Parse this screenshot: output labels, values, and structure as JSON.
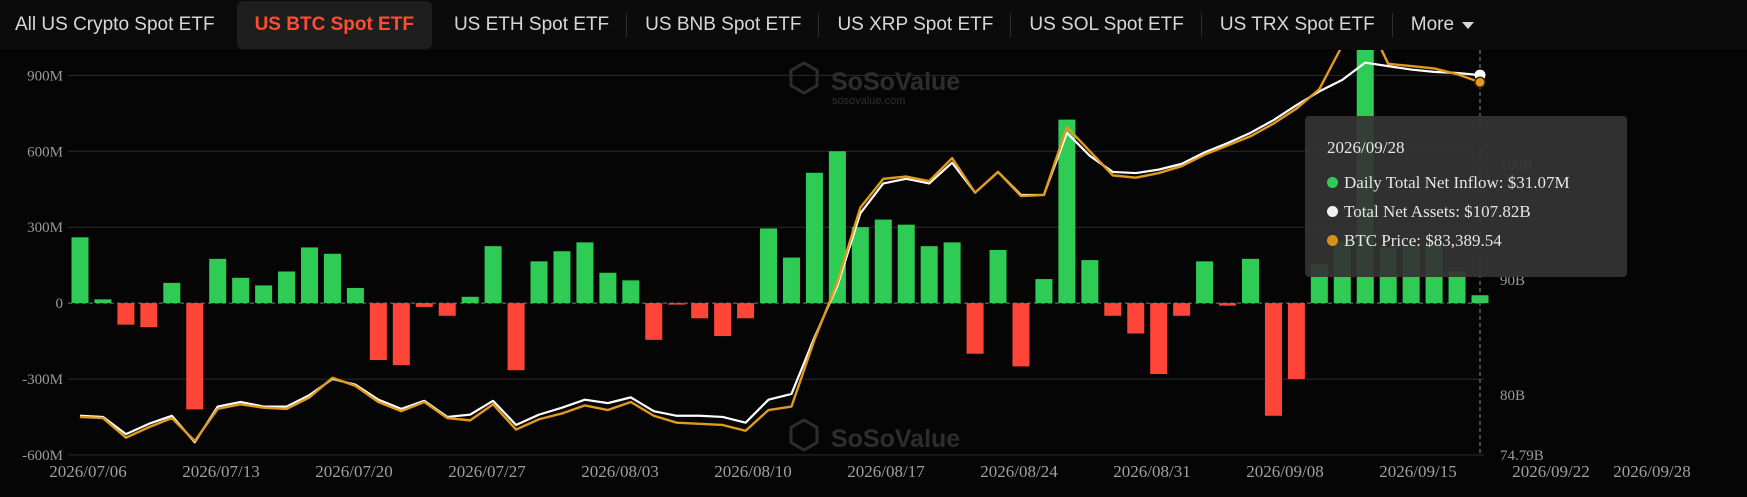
{
  "tabs": [
    {
      "label": "All US Crypto Spot ETF",
      "active": false
    },
    {
      "label": "US BTC Spot ETF",
      "active": true
    },
    {
      "label": "US ETH Spot ETF",
      "active": false
    },
    {
      "label": "US BNB Spot ETF",
      "active": false
    },
    {
      "label": "US XRP Spot ETF",
      "active": false
    },
    {
      "label": "US SOL Spot ETF",
      "active": false
    },
    {
      "label": "US TRX Spot ETF",
      "active": false
    },
    {
      "label": "More",
      "active": false,
      "icon": "caret-down-icon"
    }
  ],
  "watermark": {
    "brand": "SoSoValue",
    "sub": "sosovalue.com"
  },
  "tooltip": {
    "date": "2026/09/28",
    "rows": [
      {
        "label": "Daily Total Net Inflow: $31.07M",
        "color": "#2ecc55"
      },
      {
        "label": "Total Net Assets: $107.82B",
        "color": "#f0f0f0"
      },
      {
        "label": "BTC Price: $83,389.54",
        "color": "#d4921a"
      }
    ]
  },
  "colors": {
    "positive": "#2ecc55",
    "negative": "#ff4438",
    "net_assets": "#ffffff",
    "btc_price": "#e09a1c"
  },
  "chart_data": {
    "type": "bar",
    "y_left": {
      "min": -600,
      "max": 1000,
      "unit": "M",
      "ticks": [
        "-600M",
        "-300M",
        "0",
        "300M",
        "600M",
        "900M"
      ]
    },
    "y_right": {
      "min": 74.79,
      "max": 110,
      "unit": "B",
      "ticks": [
        "74.79B",
        "80B",
        "90B",
        "100B"
      ]
    },
    "x_labels": [
      "2026/07/06",
      "2026/07/13",
      "2026/07/20",
      "2026/07/27",
      "2026/08/03",
      "2026/08/10",
      "2026/08/17",
      "2026/08/24",
      "2026/08/31",
      "2026/09/08",
      "2026/09/15",
      "2026/09/22",
      "2026/09/28"
    ],
    "grid": true,
    "series": [
      {
        "name": "Daily Total Net Inflow",
        "kind": "bar",
        "values": [
          260,
          15,
          -85,
          -95,
          80,
          -420,
          175,
          100,
          70,
          125,
          220,
          195,
          60,
          -225,
          -245,
          -15,
          -50,
          25,
          225,
          -265,
          165,
          205,
          240,
          120,
          90,
          -145,
          -5,
          -60,
          -130,
          -60,
          295,
          180,
          515,
          600,
          300,
          330,
          310,
          225,
          240,
          -200,
          210,
          -250,
          95,
          725,
          170,
          -50,
          -120,
          -280,
          -50,
          165,
          -10,
          175,
          -445,
          -300,
          155,
          245,
          1000,
          220,
          230,
          240,
          125,
          31.07
        ]
      },
      {
        "name": "Total Net Assets",
        "kind": "line",
        "values": [
          78.2,
          78.1,
          76.6,
          77.5,
          78.2,
          75.9,
          79.0,
          79.4,
          79.0,
          79.0,
          80.0,
          81.4,
          80.9,
          79.6,
          78.8,
          79.5,
          78.1,
          78.3,
          79.5,
          77.4,
          78.3,
          78.9,
          79.6,
          79.3,
          79.8,
          78.6,
          78.2,
          78.2,
          78.1,
          77.6,
          79.6,
          80.1,
          85.0,
          89.5,
          95.8,
          98.4,
          98.8,
          98.4,
          100.2,
          97.6,
          99.4,
          97.4,
          97.4,
          102.8,
          100.8,
          99.4,
          99.3,
          99.6,
          100.1,
          101.1,
          101.9,
          102.8,
          103.9,
          105.2,
          106.4,
          107.4,
          108.9,
          108.6,
          108.3,
          108.1,
          108.0,
          107.82
        ]
      },
      {
        "name": "BTC Price",
        "kind": "line",
        "values": [
          78.1,
          78.0,
          76.3,
          77.2,
          78.0,
          76.0,
          78.8,
          79.2,
          78.9,
          78.8,
          79.8,
          81.5,
          80.8,
          79.4,
          78.6,
          79.4,
          78.0,
          77.8,
          79.2,
          77.0,
          77.9,
          78.4,
          79.1,
          78.7,
          79.4,
          78.2,
          77.6,
          77.5,
          77.4,
          76.9,
          78.7,
          79.0,
          84.8,
          89.8,
          96.3,
          98.8,
          99.0,
          98.6,
          100.6,
          97.6,
          99.4,
          97.3,
          97.4,
          103.3,
          101.2,
          99.1,
          98.9,
          99.3,
          99.9,
          100.9,
          101.7,
          102.5,
          103.6,
          104.9,
          106.6,
          110.4,
          113.0,
          108.8,
          108.6,
          108.4,
          107.9,
          107.2
        ]
      }
    ]
  }
}
